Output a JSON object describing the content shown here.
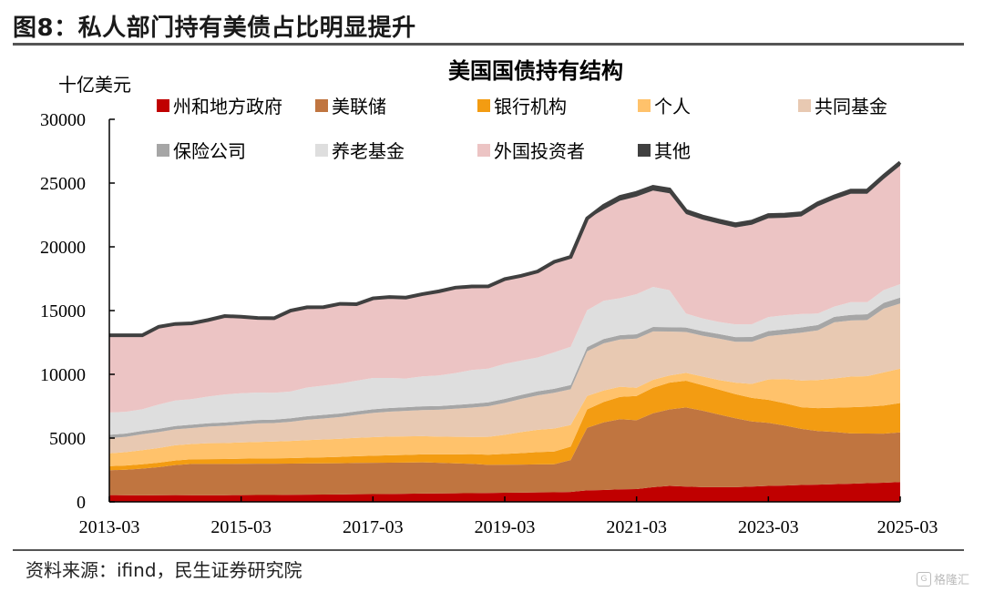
{
  "figure_title": "图8：私人部门持有美债占比明显提升",
  "source_note": "资料来源：ifind，民生证券研究院",
  "watermark": "格隆汇",
  "chart_data": {
    "type": "area",
    "stacked": true,
    "title": "美国国债持有结构",
    "ylabel": "十亿美元",
    "xlabel": "",
    "ylim": [
      0,
      30000
    ],
    "yticks": [
      0,
      5000,
      10000,
      15000,
      20000,
      25000,
      30000
    ],
    "xticklabels": [
      "2013-03",
      "2015-03",
      "2017-03",
      "2019-03",
      "2021-03",
      "2023-03",
      "2025-03"
    ],
    "xtick_positions": [
      0,
      8,
      16,
      24,
      32,
      40,
      48
    ],
    "legend_position": "top",
    "x": [
      "2013-03",
      "2013-06",
      "2013-09",
      "2013-12",
      "2014-03",
      "2014-06",
      "2014-09",
      "2014-12",
      "2015-03",
      "2015-06",
      "2015-09",
      "2015-12",
      "2016-03",
      "2016-06",
      "2016-09",
      "2016-12",
      "2017-03",
      "2017-06",
      "2017-09",
      "2017-12",
      "2018-03",
      "2018-06",
      "2018-09",
      "2018-12",
      "2019-03",
      "2019-06",
      "2019-09",
      "2019-12",
      "2020-03",
      "2020-06",
      "2020-09",
      "2020-12",
      "2021-03",
      "2021-06",
      "2021-09",
      "2021-12",
      "2022-03",
      "2022-06",
      "2022-09",
      "2022-12",
      "2023-03",
      "2023-06",
      "2023-09",
      "2023-12",
      "2024-03",
      "2024-06",
      "2024-09",
      "2024-12",
      "2025-03"
    ],
    "series": [
      {
        "name": "州和地方政府",
        "color": "#c00000",
        "values": [
          530,
          520,
          510,
          520,
          530,
          520,
          520,
          520,
          530,
          540,
          540,
          550,
          560,
          570,
          580,
          600,
          610,
          620,
          630,
          650,
          660,
          670,
          680,
          700,
          710,
          720,
          740,
          750,
          780,
          900,
          930,
          980,
          1000,
          1150,
          1250,
          1200,
          1150,
          1150,
          1150,
          1200,
          1250,
          1280,
          1320,
          1350,
          1380,
          1420,
          1460,
          1500,
          1550
        ]
      },
      {
        "name": "美联储",
        "color": "#c07540",
        "values": [
          1950,
          2000,
          2100,
          2200,
          2350,
          2450,
          2450,
          2450,
          2450,
          2450,
          2450,
          2450,
          2450,
          2450,
          2450,
          2450,
          2450,
          2450,
          2450,
          2450,
          2400,
          2350,
          2300,
          2200,
          2200,
          2200,
          2200,
          2200,
          2500,
          4900,
          5300,
          5500,
          5400,
          5800,
          6000,
          6200,
          6000,
          5700,
          5400,
          5100,
          4950,
          4700,
          4400,
          4200,
          4100,
          3950,
          3900,
          3850,
          3900
        ]
      },
      {
        "name": "银行机构",
        "color": "#f39c12",
        "values": [
          320,
          330,
          340,
          350,
          360,
          370,
          380,
          390,
          400,
          410,
          420,
          430,
          450,
          470,
          500,
          530,
          560,
          580,
          600,
          620,
          660,
          700,
          760,
          800,
          850,
          900,
          960,
          1000,
          1050,
          1450,
          1600,
          1750,
          1900,
          2000,
          2100,
          2100,
          2000,
          1950,
          1900,
          1850,
          1800,
          1750,
          1700,
          1800,
          1900,
          2050,
          2100,
          2200,
          2300
        ]
      },
      {
        "name": "个人",
        "color": "#ffc26b",
        "values": [
          1000,
          1050,
          1100,
          1150,
          1200,
          1200,
          1250,
          1250,
          1280,
          1300,
          1320,
          1350,
          1380,
          1400,
          1420,
          1440,
          1450,
          1470,
          1450,
          1430,
          1400,
          1380,
          1350,
          1400,
          1500,
          1650,
          1750,
          1800,
          1700,
          1050,
          900,
          800,
          650,
          620,
          560,
          620,
          680,
          750,
          900,
          1100,
          1600,
          1900,
          2100,
          2200,
          2300,
          2400,
          2400,
          2600,
          2700
        ]
      },
      {
        "name": "共同基金",
        "color": "#e8c9b2",
        "values": [
          1200,
          1200,
          1250,
          1250,
          1250,
          1250,
          1300,
          1350,
          1400,
          1450,
          1450,
          1500,
          1600,
          1650,
          1700,
          1800,
          1900,
          1950,
          2000,
          2050,
          2100,
          2200,
          2300,
          2400,
          2500,
          2600,
          2700,
          2800,
          2800,
          3500,
          3700,
          3700,
          3850,
          3800,
          3450,
          3200,
          3200,
          3250,
          3200,
          3300,
          3400,
          3500,
          3750,
          3900,
          4400,
          4400,
          4400,
          5000,
          5100
        ]
      },
      {
        "name": "保险公司",
        "color": "#a6a6a6",
        "values": [
          260,
          260,
          260,
          260,
          260,
          260,
          260,
          260,
          260,
          270,
          270,
          270,
          270,
          280,
          280,
          280,
          290,
          290,
          290,
          290,
          290,
          300,
          300,
          300,
          310,
          310,
          320,
          320,
          330,
          330,
          340,
          340,
          340,
          340,
          340,
          350,
          350,
          360,
          370,
          380,
          390,
          400,
          410,
          420,
          430,
          440,
          450,
          460,
          470
        ]
      },
      {
        "name": "养老基金",
        "color": "#dedede",
        "values": [
          1750,
          1700,
          1700,
          1900,
          2000,
          2000,
          2100,
          2200,
          2200,
          2150,
          2100,
          2100,
          2250,
          2300,
          2350,
          2400,
          2450,
          2350,
          2250,
          2350,
          2400,
          2500,
          2650,
          2650,
          2750,
          2700,
          2650,
          2850,
          3000,
          2900,
          3000,
          2900,
          3150,
          3150,
          2900,
          1100,
          1000,
          950,
          1000,
          1000,
          1100,
          1100,
          1050,
          900,
          800,
          1000,
          950,
          1000,
          1050
        ]
      },
      {
        "name": "外国投资者",
        "color": "#ecc4c4",
        "values": [
          6000,
          5950,
          5750,
          6050,
          5950,
          5900,
          5950,
          6100,
          5950,
          5800,
          5800,
          6300,
          6250,
          6100,
          6200,
          5950,
          6200,
          6300,
          6300,
          6400,
          6550,
          6650,
          6500,
          6400,
          6600,
          6600,
          6700,
          7050,
          7000,
          7150,
          7150,
          7650,
          7650,
          7550,
          7600,
          7800,
          7750,
          7700,
          7600,
          7800,
          7750,
          7650,
          7650,
          8400,
          8400,
          8500,
          8500,
          8700,
          9300
        ]
      },
      {
        "name": "其他",
        "color": "#404040",
        "values": [
          50,
          50,
          50,
          50,
          50,
          50,
          50,
          50,
          50,
          50,
          50,
          50,
          50,
          50,
          50,
          50,
          50,
          50,
          50,
          50,
          50,
          50,
          50,
          50,
          50,
          50,
          50,
          50,
          50,
          50,
          300,
          300,
          300,
          300,
          300,
          250,
          250,
          250,
          250,
          250,
          250,
          250,
          250,
          250,
          250,
          250,
          250,
          250,
          250
        ]
      }
    ]
  }
}
